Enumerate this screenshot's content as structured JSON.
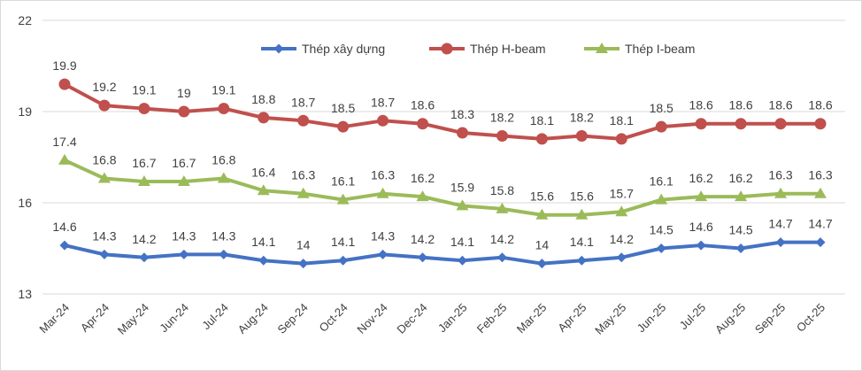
{
  "chart_data": {
    "type": "line",
    "title": "",
    "xlabel": "",
    "ylabel": "",
    "ylim": [
      13,
      22
    ],
    "yticks": [
      13,
      16,
      19,
      22
    ],
    "grid": true,
    "legend_position": "top-center",
    "categories": [
      "Mar-24",
      "Apr-24",
      "May-24",
      "Jun-24",
      "Jul-24",
      "Aug-24",
      "Sep-24",
      "Oct-24",
      "Nov-24",
      "Dec-24",
      "Jan-25",
      "Feb-25",
      "Mar-25",
      "Apr-25",
      "May-25",
      "Jun-25",
      "Jul-25",
      "Aug-25",
      "Sep-25",
      "Oct-25"
    ],
    "series": [
      {
        "name": "Thép xây dựng",
        "color": "#4472C4",
        "marker": "diamond",
        "values": [
          14.6,
          14.3,
          14.2,
          14.3,
          14.3,
          14.1,
          14,
          14.1,
          14.3,
          14.2,
          14.1,
          14.2,
          14,
          14.1,
          14.2,
          14.5,
          14.6,
          14.5,
          14.7,
          14.7
        ]
      },
      {
        "name": "Thép H-beam",
        "color": "#C0504D",
        "marker": "circle",
        "values": [
          19.9,
          19.2,
          19.1,
          19,
          19.1,
          18.8,
          18.7,
          18.5,
          18.7,
          18.6,
          18.3,
          18.2,
          18.1,
          18.2,
          18.1,
          18.5,
          18.6,
          18.6,
          18.6,
          18.6
        ]
      },
      {
        "name": "Thép I-beam",
        "color": "#9BBB59",
        "marker": "triangle",
        "values": [
          17.4,
          16.8,
          16.7,
          16.7,
          16.8,
          16.4,
          16.3,
          16.1,
          16.3,
          16.2,
          15.9,
          15.8,
          15.6,
          15.6,
          15.7,
          16.1,
          16.2,
          16.2,
          16.3,
          16.3
        ]
      }
    ]
  }
}
